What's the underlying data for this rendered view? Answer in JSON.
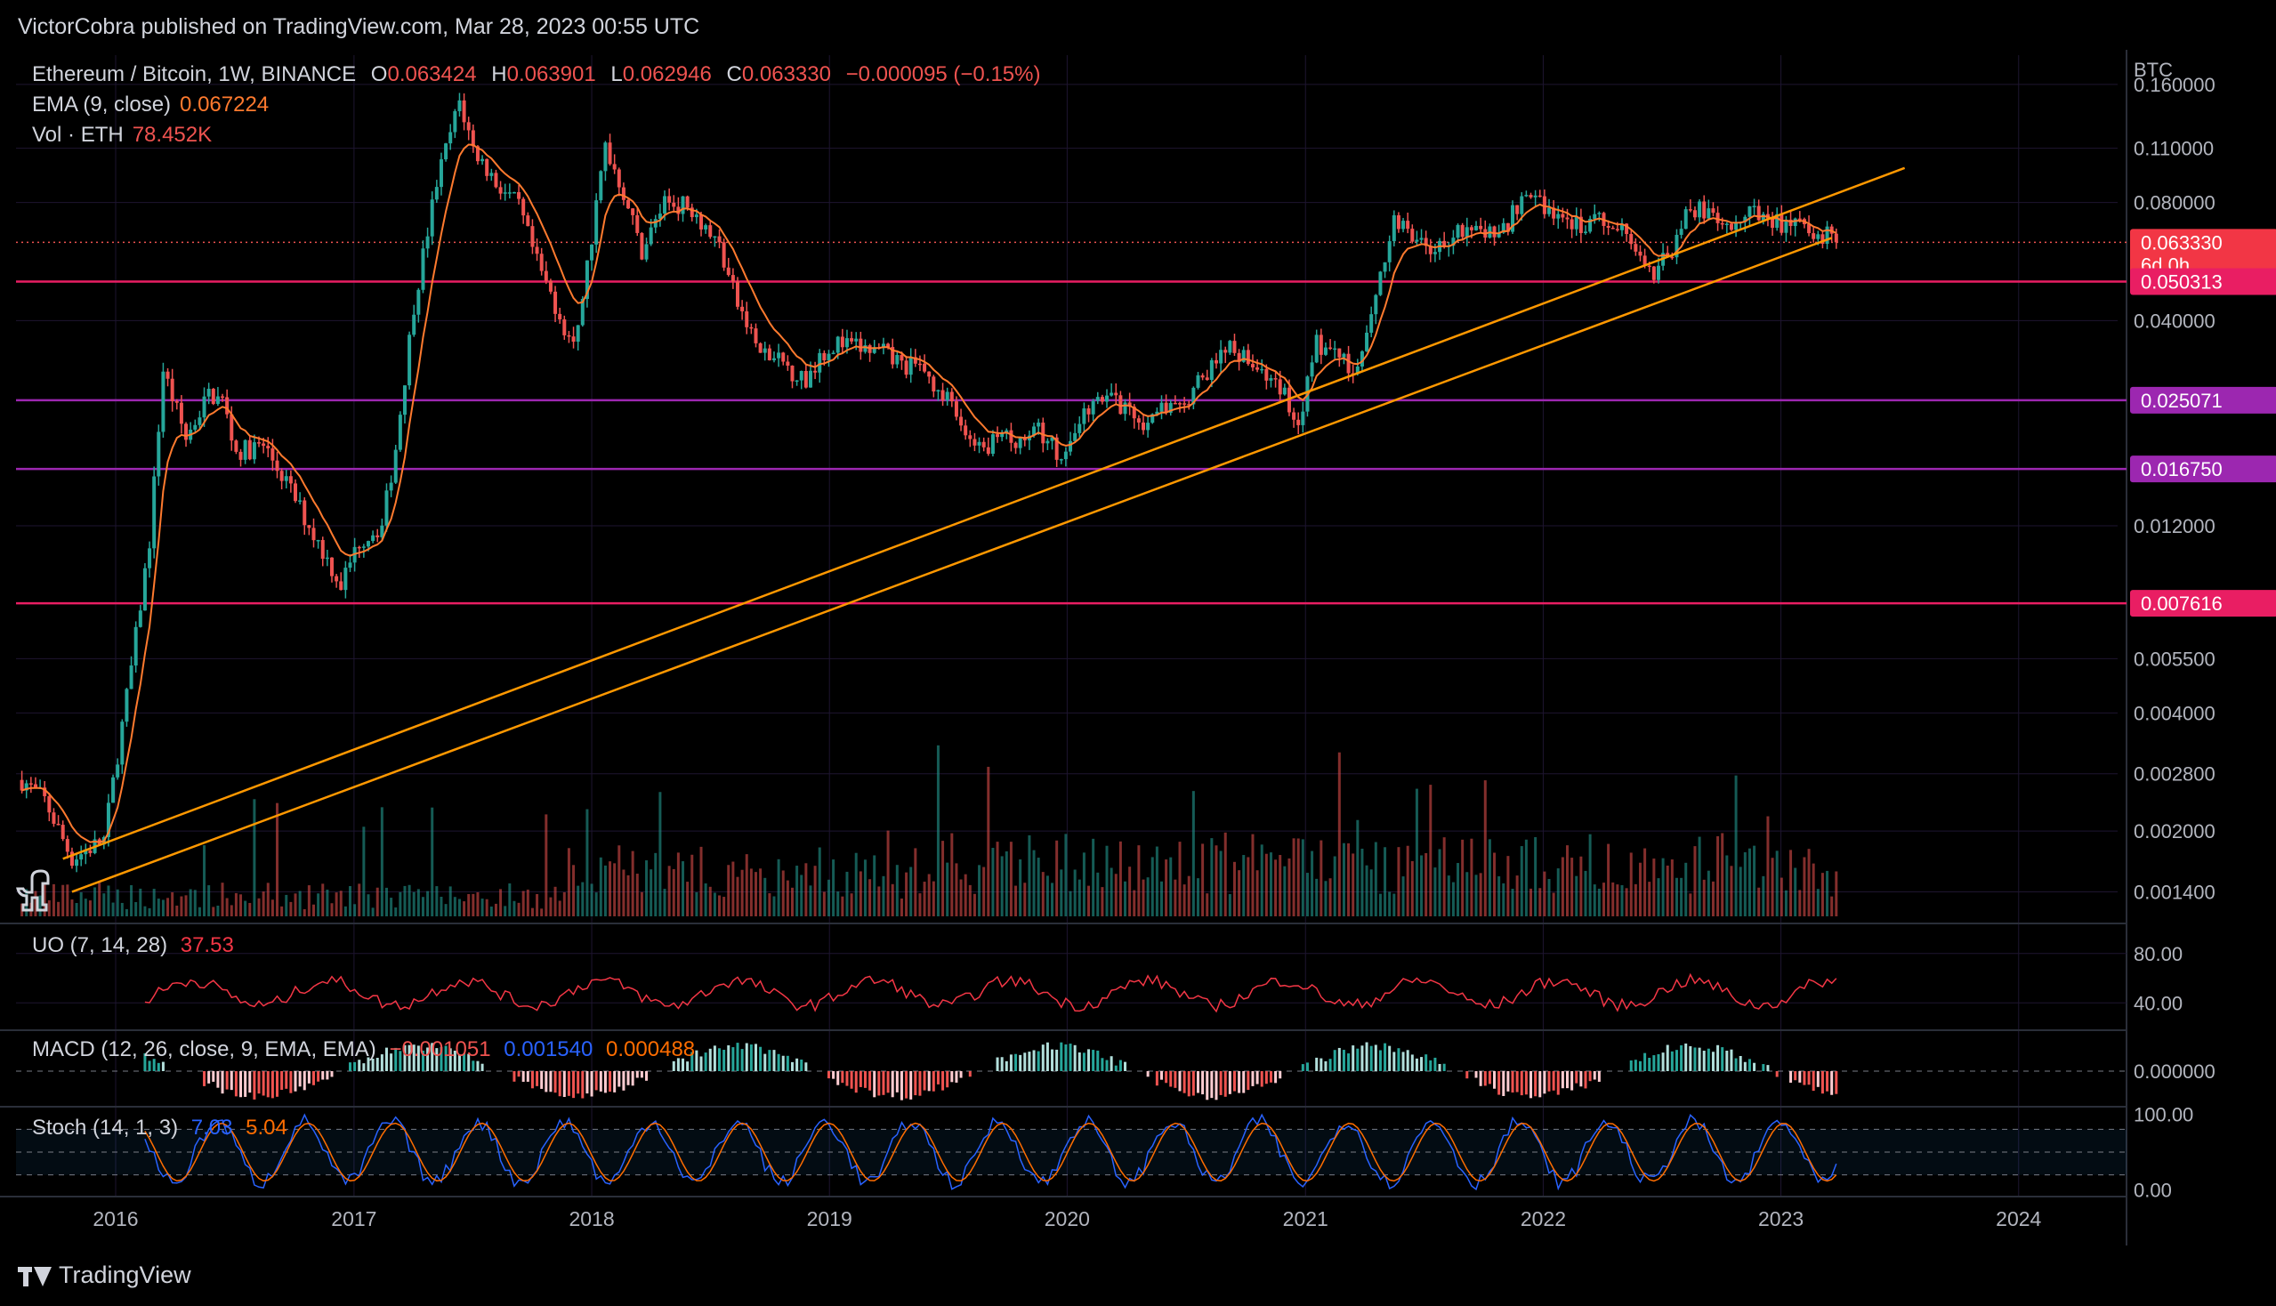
{
  "header": {
    "published_by": "VictorCobra published on TradingView.com, Mar 28, 2023 00:55 UTC"
  },
  "legend": {
    "symbol": "Ethereum / Bitcoin, 1W, BINANCE",
    "o_label": "O",
    "o_value": "0.063424",
    "h_label": "H",
    "h_value": "0.063901",
    "l_label": "L",
    "l_value": "0.062946",
    "c_label": "C",
    "c_value": "0.063330",
    "change": "−0.000095 (−0.15%)",
    "ema_label": "EMA (9, close)",
    "ema_value": "0.067224",
    "vol_label": "Vol · ETH",
    "vol_value": "78.452K"
  },
  "price_axis": {
    "unit": "BTC",
    "ticks": [
      "0.160000",
      "0.110000",
      "0.080000",
      "0.040000",
      "0.012000",
      "0.005500",
      "0.004000",
      "0.002800",
      "0.002000",
      "0.001400"
    ]
  },
  "badges": {
    "last_price": "0.063330",
    "countdown": "6d 0h",
    "levels": [
      "0.050313",
      "0.025071",
      "0.016750",
      "0.007616"
    ]
  },
  "uo": {
    "label": "UO (7, 14, 28)",
    "value": "37.53",
    "ticks": [
      "80.00",
      "40.00"
    ]
  },
  "macd": {
    "label": "MACD (12, 26, close, 9, EMA, EMA)",
    "hist": "−0.001051",
    "macd": "0.001540",
    "signal": "0.000488",
    "ticks": [
      "0.000000"
    ]
  },
  "stoch": {
    "label": "Stoch (14, 1, 3)",
    "k": "7.03",
    "d": "5.04",
    "ticks": [
      "100.00",
      "0.00"
    ]
  },
  "time_axis": [
    "2016",
    "2017",
    "2018",
    "2019",
    "2020",
    "2021",
    "2022",
    "2023",
    "2024"
  ],
  "footer": {
    "brand": "TradingView"
  },
  "colors": {
    "up": "#26a69a",
    "down": "#ef5350",
    "ema": "#ff7a2e",
    "trend": "#ff9800",
    "level_red": "#e91e63",
    "level_purple": "#9c27b0",
    "uo": "#f23645",
    "macd_line": "#2962ff",
    "signal_line": "#ff6d00",
    "stoch_k": "#2962ff",
    "stoch_d": "#ff6d00"
  },
  "chart_data": {
    "type": "candlestick",
    "scale": "log",
    "x_range": [
      "2015-08",
      "2024-06"
    ],
    "ylim": [
      0.0012,
      0.19
    ],
    "price_path": [
      [
        "2015-08-10",
        0.0027
      ],
      [
        "2015-09-14",
        0.0024
      ],
      [
        "2015-10-26",
        0.0017
      ],
      [
        "2015-12-14",
        0.0019
      ],
      [
        "2016-01-25",
        0.0052
      ],
      [
        "2016-02-22",
        0.011
      ],
      [
        "2016-03-14",
        0.03
      ],
      [
        "2016-04-18",
        0.02
      ],
      [
        "2016-05-23",
        0.026
      ],
      [
        "2016-06-13",
        0.025
      ],
      [
        "2016-07-04",
        0.0185
      ],
      [
        "2016-08-15",
        0.0192
      ],
      [
        "2016-09-19",
        0.0155
      ],
      [
        "2016-10-24",
        0.012
      ],
      [
        "2016-12-12",
        0.0085
      ],
      [
        "2017-01-09",
        0.011
      ],
      [
        "2017-02-13",
        0.012
      ],
      [
        "2017-03-06",
        0.019
      ],
      [
        "2017-04-03",
        0.044
      ],
      [
        "2017-05-08",
        0.09
      ],
      [
        "2017-06-12",
        0.145
      ],
      [
        "2017-07-03",
        0.11
      ],
      [
        "2017-08-07",
        0.09
      ],
      [
        "2017-09-11",
        0.078
      ],
      [
        "2017-10-09",
        0.056
      ],
      [
        "2017-11-06",
        0.044
      ],
      [
        "2017-12-04",
        0.034
      ],
      [
        "2018-01-01",
        0.065
      ],
      [
        "2018-01-22",
        0.112
      ],
      [
        "2018-02-19",
        0.085
      ],
      [
        "2018-03-19",
        0.06
      ],
      [
        "2018-04-23",
        0.081
      ],
      [
        "2018-06-04",
        0.078
      ],
      [
        "2018-07-16",
        0.062
      ],
      [
        "2018-08-13",
        0.044
      ],
      [
        "2018-09-17",
        0.033
      ],
      [
        "2018-10-22",
        0.031
      ],
      [
        "2018-11-26",
        0.028
      ],
      [
        "2018-12-17",
        0.033
      ],
      [
        "2019-01-14",
        0.035
      ],
      [
        "2019-02-18",
        0.034
      ],
      [
        "2019-03-25",
        0.033
      ],
      [
        "2019-04-22",
        0.031
      ],
      [
        "2019-05-27",
        0.03
      ],
      [
        "2019-06-24",
        0.026
      ],
      [
        "2019-07-29",
        0.021
      ],
      [
        "2019-08-26",
        0.018
      ],
      [
        "2019-09-16",
        0.0205
      ],
      [
        "2019-10-21",
        0.02
      ],
      [
        "2019-11-18",
        0.021
      ],
      [
        "2019-12-16",
        0.0185
      ],
      [
        "2020-01-13",
        0.0195
      ],
      [
        "2020-02-10",
        0.0265
      ],
      [
        "2020-03-16",
        0.025
      ],
      [
        "2020-04-20",
        0.0215
      ],
      [
        "2020-05-25",
        0.0235
      ],
      [
        "2020-06-29",
        0.024
      ],
      [
        "2020-08-03",
        0.03
      ],
      [
        "2020-09-07",
        0.035
      ],
      [
        "2020-10-19",
        0.03
      ],
      [
        "2020-11-23",
        0.027
      ],
      [
        "2020-12-21",
        0.022
      ],
      [
        "2021-01-18",
        0.035
      ],
      [
        "2021-02-15",
        0.033
      ],
      [
        "2021-03-22",
        0.03
      ],
      [
        "2021-04-19",
        0.045
      ],
      [
        "2021-05-17",
        0.075
      ],
      [
        "2021-06-21",
        0.062
      ],
      [
        "2021-07-19",
        0.06
      ],
      [
        "2021-08-23",
        0.07
      ],
      [
        "2021-09-20",
        0.068
      ],
      [
        "2021-10-25",
        0.065
      ],
      [
        "2021-11-22",
        0.078
      ],
      [
        "2021-12-20",
        0.082
      ],
      [
        "2022-01-24",
        0.074
      ],
      [
        "2022-02-28",
        0.07
      ],
      [
        "2022-04-04",
        0.072
      ],
      [
        "2022-05-09",
        0.068
      ],
      [
        "2022-06-13",
        0.052
      ],
      [
        "2022-07-11",
        0.058
      ],
      [
        "2022-08-15",
        0.078
      ],
      [
        "2022-09-12",
        0.074
      ],
      [
        "2022-10-17",
        0.068
      ],
      [
        "2022-11-14",
        0.075
      ],
      [
        "2022-12-19",
        0.072
      ],
      [
        "2023-01-23",
        0.07
      ],
      [
        "2023-02-27",
        0.068
      ],
      [
        "2023-03-27",
        0.06333
      ]
    ],
    "horizontal_levels": [
      0.050313,
      0.025071,
      0.01675,
      0.007616
    ],
    "trendlines": [
      {
        "from": [
          "2015-10-12",
          0.0017
        ],
        "to": [
          "2023-07-10",
          0.098
        ]
      },
      {
        "from": [
          "2015-10-26",
          0.0014
        ],
        "to": [
          "2023-03-20",
          0.065
        ]
      }
    ],
    "last_close": 0.06333
  }
}
